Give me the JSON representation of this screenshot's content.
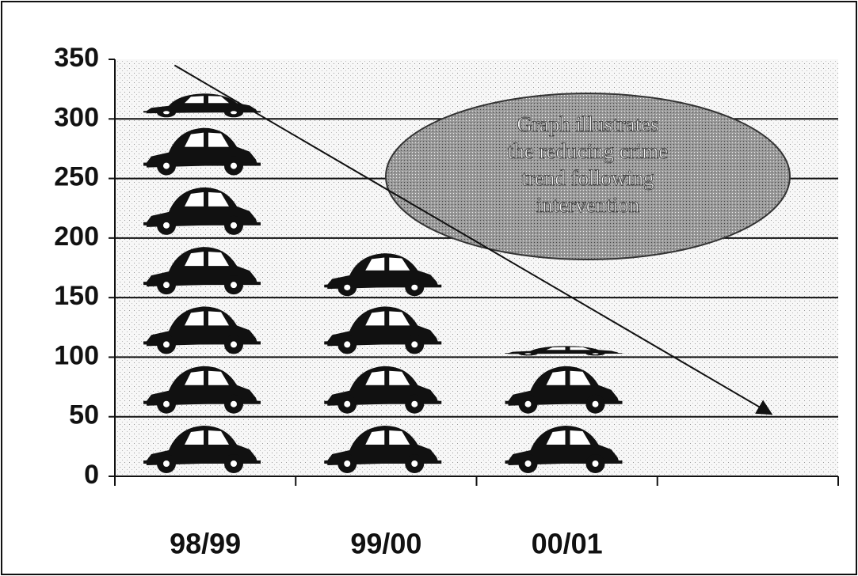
{
  "chart_data": {
    "type": "bar",
    "categories": [
      "98/99",
      "99/00",
      "00/01",
      null
    ],
    "values": [
      325,
      195,
      110,
      null
    ],
    "color": "#111111",
    "unit_per_icon": 50,
    "ylim": [
      0,
      350
    ],
    "yticks": [
      0,
      50,
      100,
      150,
      200,
      250,
      300,
      350
    ],
    "grid": true,
    "trend": {
      "start": 345,
      "end": 55
    },
    "annotation": [
      "Graph illustrates",
      "the reducing crime",
      "trend following",
      "intervention"
    ]
  }
}
